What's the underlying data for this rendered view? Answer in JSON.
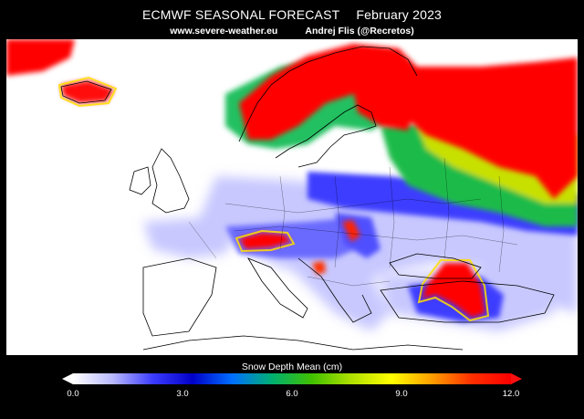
{
  "header": {
    "title": "ECMWF SEASONAL FORECAST",
    "period": "February 2023",
    "website": "www.severe-weather.eu",
    "author": "Andrej Flis (@Recretos)"
  },
  "map": {
    "region": "Europe",
    "background": "#ffffff",
    "coastline_color": "#000000",
    "variable": "Snow Depth Mean (cm)"
  },
  "colorbar": {
    "title": "Snow Depth Mean (cm)",
    "min": 0.0,
    "max": 12.0,
    "ticks": [
      "0.0",
      "3.0",
      "6.0",
      "9.0",
      "12.0"
    ],
    "colors": [
      "#ffffff",
      "#b8b8ff",
      "#3c3cff",
      "#0000c8",
      "#0070ff",
      "#00b070",
      "#40c000",
      "#b0e000",
      "#ffff00",
      "#ffa000",
      "#ff3000",
      "#ff0000"
    ],
    "extends": "both"
  }
}
